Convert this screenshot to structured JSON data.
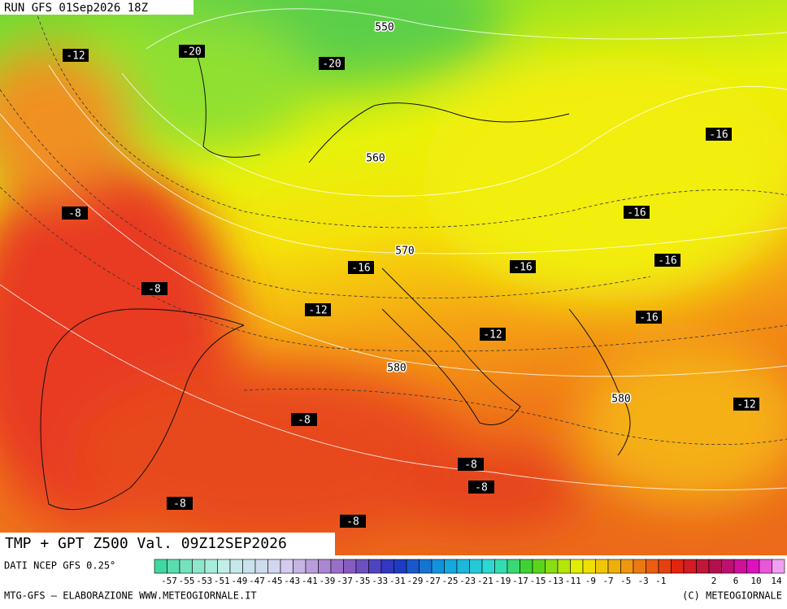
{
  "header": {
    "run": "RUN GFS 01Sep2026 18Z"
  },
  "map": {
    "temperature_labels": [
      -12,
      -20,
      -20,
      -16,
      -8,
      -16,
      -16,
      -16,
      -16,
      -8,
      -12,
      -16,
      -12,
      -12,
      -8,
      -8,
      -8,
      -8,
      -8
    ],
    "height_labels": [
      550,
      560,
      570,
      580,
      580
    ]
  },
  "footer": {
    "title": "TMP + GPT Z500 Val. 09Z12SEP2026",
    "source": "DATI NCEP GFS 0.25°",
    "credit": "MTG-GFS – ELABORAZIONE WWW.METEOGIORNALE.IT",
    "copyright": "(C) METEOGIORNALE"
  },
  "colorbar": {
    "ticks": [
      -57,
      -55,
      -53,
      -51,
      -49,
      -47,
      -45,
      -43,
      -41,
      -39,
      -37,
      -35,
      -33,
      -31,
      -29,
      -27,
      -25,
      -23,
      -21,
      -19,
      -17,
      -15,
      -13,
      -11,
      -9,
      -7,
      -5,
      -3,
      -1,
      2,
      6,
      10,
      14
    ]
  }
}
